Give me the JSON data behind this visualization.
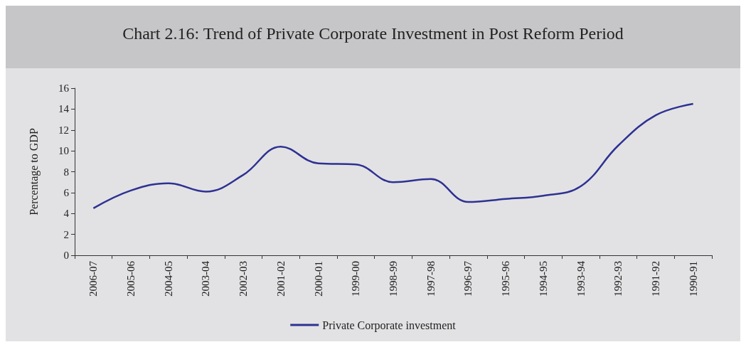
{
  "chart_data": {
    "type": "line",
    "title": "Chart 2.16: Trend of Private Corporate Investment in Post Reform Period",
    "ylabel": "Percentage to GDP",
    "categories": [
      "2006-07",
      "2005-06",
      "2004-05",
      "2003-04",
      "2002-03",
      "2001-02",
      "2000-01",
      "1999-00",
      "1998-99",
      "1997-98",
      "1996-97",
      "1995-96",
      "1994-95",
      "1993-94",
      "1992-93",
      "1991-92",
      "1990-91"
    ],
    "series": [
      {
        "name": "Private Corporate investment",
        "color": "#2e3192",
        "values": [
          4.5,
          6.2,
          6.9,
          6.1,
          7.7,
          10.4,
          8.8,
          8.7,
          7.0,
          7.3,
          5.1,
          5.4,
          5.7,
          6.6,
          10.5,
          13.4,
          14.5
        ]
      }
    ],
    "ylim": [
      0,
      16
    ],
    "yticks": [
      0,
      2,
      4,
      6,
      8,
      10,
      12,
      14,
      16
    ],
    "grid": false,
    "legend": "bottom",
    "marker": "none",
    "line_style": "solid"
  }
}
